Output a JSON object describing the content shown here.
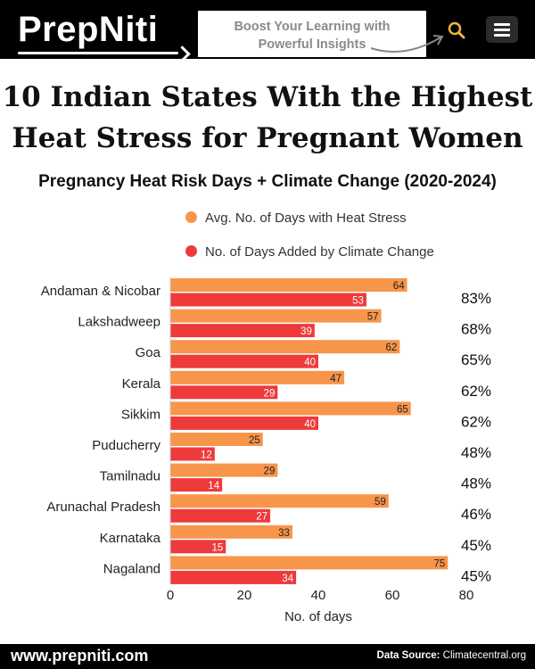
{
  "header": {
    "logo": "PrepNiti",
    "tagline_line1": "Boost Your Learning  with",
    "tagline_line2": "Powerful Insights"
  },
  "title_line1": "10 Indian States With the Highest",
  "title_line2": "Heat Stress for Pregnant Women",
  "subtitle": "Pregnancy Heat Risk Days + Climate Change (2020-2024)",
  "colors": {
    "orange": "#F7954A",
    "red": "#EE3A3B"
  },
  "chart_data": {
    "type": "bar",
    "orientation": "horizontal",
    "categories": [
      "Andaman & Nicobar",
      "Lakshadweep",
      "Goa",
      "Kerala",
      "Sikkim",
      "Puducherry",
      "Tamilnadu",
      "Arunachal Pradesh",
      "Karnataka",
      "Nagaland"
    ],
    "series": [
      {
        "name": "Avg. No. of Days with Heat Stress",
        "color": "#F7954A",
        "values": [
          64,
          57,
          62,
          47,
          65,
          25,
          29,
          59,
          33,
          75
        ]
      },
      {
        "name": "No. of Days Added by Climate Change",
        "color": "#EE3A3B",
        "values": [
          53,
          39,
          40,
          29,
          40,
          12,
          14,
          27,
          15,
          34
        ]
      }
    ],
    "percentages": [
      "83%",
      "68%",
      "65%",
      "62%",
      "62%",
      "48%",
      "48%",
      "46%",
      "45%",
      "45%"
    ],
    "xlabel": "No. of days",
    "xlim": [
      0,
      80
    ],
    "xticks": [
      "0",
      "20",
      "40",
      "60",
      "80"
    ],
    "grid": false,
    "legend_position": "top"
  },
  "footer": {
    "site": "www.prepniti.com",
    "source_label": "Data Source",
    "source_value": "Climatecentral.org"
  }
}
